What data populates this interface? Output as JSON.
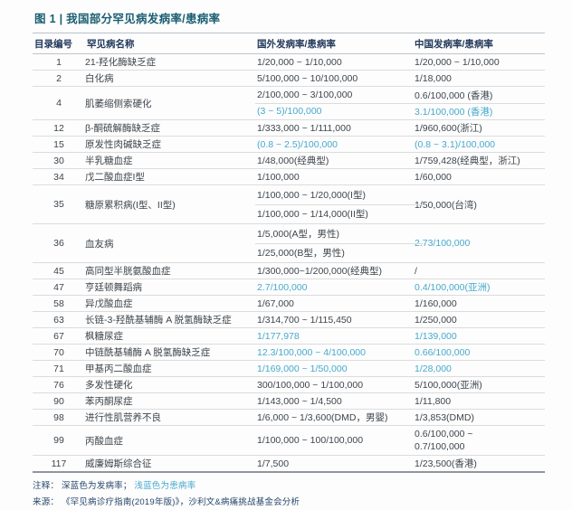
{
  "title": "图 1 | 我国部分罕见病发病率/患病率",
  "colors": {
    "title_teal": "#1a5e72",
    "header_navy": "#22395a",
    "body_dark": "#3e454c",
    "prevalence_blue": "#46a9cd"
  },
  "table": {
    "headers": [
      "目录编号",
      "罕见病名称",
      "国外发病率/患病率",
      "中国发病率/患病率"
    ],
    "rows": [
      {
        "id": "1",
        "name": "21-羟化酶缺乏症",
        "split": "none",
        "foreign": [
          {
            "text": "1/20,000 ~ 1/10,000",
            "blue": false
          }
        ],
        "china": [
          {
            "text": "1/20,000 ~ 1/10,000",
            "blue": false
          }
        ]
      },
      {
        "id": "2",
        "name": "白化病",
        "split": "none",
        "foreign": [
          {
            "text": "5/100,000 ~ 10/100,000",
            "blue": false
          }
        ],
        "china": [
          {
            "text": "1/18,000",
            "blue": false
          }
        ]
      },
      {
        "id": "4",
        "name": "肌萎缩侧索硬化",
        "split": "both",
        "foreign": [
          {
            "text": "2/100,000 ~ 3/100,000",
            "blue": false
          },
          {
            "text": "(3 ~  5)/100,000",
            "blue": true
          }
        ],
        "china": [
          {
            "text": "0.6/100,000 (香港)",
            "blue": false
          },
          {
            "text": "3.1/100,000 (香港)",
            "blue": true
          }
        ]
      },
      {
        "id": "12",
        "name": "β-酮硫解酶缺乏症",
        "split": "none",
        "foreign": [
          {
            "text": "1/333,000 ~ 1/111,000",
            "blue": false
          }
        ],
        "china": [
          {
            "text": "1/960,600(浙江)",
            "blue": false
          }
        ]
      },
      {
        "id": "15",
        "name": "原发性肉碱缺乏症",
        "split": "none",
        "foreign": [
          {
            "text": "(0.8 ~ 2.5)/100,000",
            "blue": true
          }
        ],
        "china": [
          {
            "text": "(0.8 ~ 3.1)/100,000",
            "blue": true
          }
        ]
      },
      {
        "id": "30",
        "name": "半乳糖血症",
        "split": "none",
        "foreign": [
          {
            "text": "1/48,000(经典型)",
            "blue": false
          }
        ],
        "china": [
          {
            "text": "1/759,428(经典型，浙江)",
            "blue": false
          }
        ]
      },
      {
        "id": "34",
        "name": "戊二酸血症I型",
        "split": "none",
        "foreign": [
          {
            "text": "1/100,000",
            "blue": false
          }
        ],
        "china": [
          {
            "text": "1/60,000",
            "blue": false
          }
        ]
      },
      {
        "id": "35",
        "name": "糖原累积病(I型、II型)",
        "split": "foreign",
        "foreign": [
          {
            "text": "1/100,000 ~ 1/20,000(I型)",
            "blue": false
          },
          {
            "text": "1/100,000 ~ 1/14,000(II型)",
            "blue": false
          }
        ],
        "china": [
          {
            "text": "1/50,000(台湾)",
            "blue": false
          }
        ]
      },
      {
        "id": "36",
        "name": "血友病",
        "split": "foreign",
        "foreign": [
          {
            "text": "1/5,000(A型，男性)",
            "blue": false
          },
          {
            "text": "1/25,000(B型，男性)",
            "blue": false
          }
        ],
        "china": [
          {
            "text": "2.73/100,000",
            "blue": true
          }
        ]
      },
      {
        "id": "45",
        "name": "高同型半胱氨酸血症",
        "split": "none",
        "foreign": [
          {
            "text": "1/300,000~1/200,000(经典型)",
            "blue": false
          }
        ],
        "china": [
          {
            "text": "/",
            "blue": false
          }
        ]
      },
      {
        "id": "47",
        "name": "亨廷顿舞蹈病",
        "split": "none",
        "foreign": [
          {
            "text": "2.7/100,000",
            "blue": true
          }
        ],
        "china": [
          {
            "text": "0.4/100,000(亚洲)",
            "blue": true
          }
        ]
      },
      {
        "id": "58",
        "name": "异戊酸血症",
        "split": "none",
        "foreign": [
          {
            "text": "1/67,000",
            "blue": false
          }
        ],
        "china": [
          {
            "text": "1/160,000",
            "blue": false
          }
        ]
      },
      {
        "id": "63",
        "name": "长链-3-羟酰基辅酶 A 脱氢酶缺乏症",
        "split": "none",
        "foreign": [
          {
            "text": "1/314,700 ~ 1/115,450",
            "blue": false
          }
        ],
        "china": [
          {
            "text": "1/250,000",
            "blue": false
          }
        ]
      },
      {
        "id": "67",
        "name": "枫糖尿症",
        "split": "none",
        "foreign": [
          {
            "text": "1/177,978",
            "blue": true
          }
        ],
        "china": [
          {
            "text": "1/139,000",
            "blue": true
          }
        ]
      },
      {
        "id": "70",
        "name": "中链酰基辅酶 A 脱氢酶缺乏症",
        "split": "none",
        "foreign": [
          {
            "text": "12.3/100,000 ~ 4/100,000",
            "blue": true
          }
        ],
        "china": [
          {
            "text": "0.66/100,000",
            "blue": true
          }
        ]
      },
      {
        "id": "71",
        "name": "甲基丙二酸血症",
        "split": "none",
        "foreign": [
          {
            "text": "1/169,000 ~ 1/50,000",
            "blue": true
          }
        ],
        "china": [
          {
            "text": "1/28,000",
            "blue": true
          }
        ]
      },
      {
        "id": "76",
        "name": "多发性硬化",
        "split": "none",
        "foreign": [
          {
            "text": "300/100,000 ~ 1/100,000",
            "blue": false
          }
        ],
        "china": [
          {
            "text": "5/100,000(亚洲)",
            "blue": false
          }
        ]
      },
      {
        "id": "90",
        "name": "苯丙酮尿症",
        "split": "none",
        "foreign": [
          {
            "text": "1/143,000 ~ 1/4,500",
            "blue": false
          }
        ],
        "china": [
          {
            "text": "1/11,800",
            "blue": false
          }
        ]
      },
      {
        "id": "98",
        "name": "进行性肌营养不良",
        "split": "none",
        "foreign": [
          {
            "text": "1/6,000 ~ 1/3,600(DMD，男婴)",
            "blue": false
          }
        ],
        "china": [
          {
            "text": "1/3,853(DMD)",
            "blue": false
          }
        ]
      },
      {
        "id": "99",
        "name": "丙酸血症",
        "split": "china-stack",
        "foreign": [
          {
            "text": "1/100,000 ~ 100/100,000",
            "blue": false
          }
        ],
        "china": [
          {
            "text": "0.6/100,000 ~",
            "blue": false
          },
          {
            "text": "0.7/100,000",
            "blue": false
          }
        ]
      },
      {
        "id": "117",
        "name": "威廉姆斯综合征",
        "split": "none",
        "foreign": [
          {
            "text": "1/7,500",
            "blue": false
          }
        ],
        "china": [
          {
            "text": "1/23,500(香港)",
            "blue": false
          }
        ]
      }
    ]
  },
  "notes": {
    "label": "注释：",
    "incidence": "深蓝色为发病率；",
    "prevalence": "浅蓝色为患病率"
  },
  "source": {
    "label": "来源：",
    "text": "《罕见病诊疗指南(2019年版)》，沙利文&病痛挑战基金会分析"
  }
}
